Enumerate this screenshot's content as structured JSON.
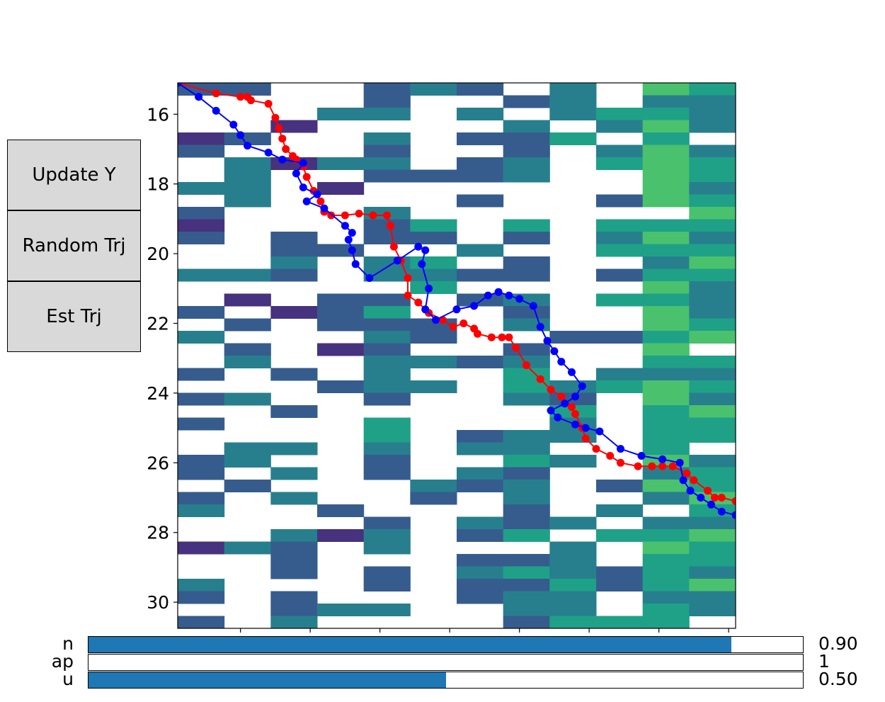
{
  "buttons": {
    "update_y": "Update Y",
    "random_trj": "Random Trj",
    "est_trj": "Est Trj"
  },
  "sliders": [
    {
      "label": "n",
      "value_text": "0.90",
      "fraction": 0.9
    },
    {
      "label": "ap",
      "value_text": "1",
      "fraction": 0.0
    },
    {
      "label": "u",
      "value_text": "0.50",
      "fraction": 0.5
    }
  ],
  "colors": {
    "red_series": "#ff0000",
    "blue_series": "#0000ff",
    "slider_fill": "#1f77b4"
  },
  "chart_data": {
    "type": "heatmap",
    "title": "",
    "xlabel": "",
    "ylabel": "",
    "colormap": "viridis",
    "xlim": [
      -0.5,
      7.5
    ],
    "ylim": [
      30.75,
      15.1
    ],
    "yticks": [
      16,
      18,
      20,
      22,
      24,
      26,
      28,
      30
    ],
    "xticks_unlabeled": [
      0.4,
      1.4,
      2.4,
      3.4,
      4.4,
      5.4,
      6.4,
      7.4
    ],
    "columns": 12,
    "rows": 44,
    "cell_height": 0.35,
    "grid": false,
    "series": [
      {
        "color": "red",
        "marker": "o",
        "points": [
          [
            -0.5,
            15.1
          ],
          [
            0.05,
            15.4
          ],
          [
            0.4,
            15.5
          ],
          [
            0.5,
            15.5
          ],
          [
            0.55,
            15.6
          ],
          [
            0.8,
            15.7
          ],
          [
            0.9,
            16.1
          ],
          [
            0.95,
            16.4
          ],
          [
            1.0,
            16.7
          ],
          [
            1.05,
            17.0
          ],
          [
            1.15,
            17.2
          ],
          [
            1.2,
            17.3
          ],
          [
            1.3,
            17.5
          ],
          [
            1.35,
            17.8
          ],
          [
            1.45,
            18.2
          ],
          [
            1.55,
            18.5
          ],
          [
            1.6,
            18.8
          ],
          [
            1.7,
            18.9
          ],
          [
            1.9,
            18.9
          ],
          [
            2.1,
            18.85
          ],
          [
            2.3,
            18.9
          ],
          [
            2.5,
            18.9
          ],
          [
            2.55,
            19.2
          ],
          [
            2.6,
            19.8
          ],
          [
            2.7,
            20.2
          ],
          [
            2.8,
            20.7
          ],
          [
            2.8,
            21.2
          ],
          [
            2.95,
            21.4
          ],
          [
            3.1,
            21.7
          ],
          [
            3.3,
            21.9
          ],
          [
            3.45,
            22.1
          ],
          [
            3.6,
            22.0
          ],
          [
            3.75,
            22.15
          ],
          [
            3.8,
            22.3
          ],
          [
            4.0,
            22.4
          ],
          [
            4.15,
            22.4
          ],
          [
            4.25,
            22.4
          ],
          [
            4.35,
            22.7
          ],
          [
            4.5,
            23.2
          ],
          [
            4.7,
            23.6
          ],
          [
            4.85,
            23.9
          ],
          [
            5.0,
            24.1
          ],
          [
            5.15,
            24.4
          ],
          [
            5.2,
            24.6
          ],
          [
            5.3,
            25.0
          ],
          [
            5.35,
            25.3
          ],
          [
            5.5,
            25.6
          ],
          [
            5.7,
            25.8
          ],
          [
            5.85,
            26.0
          ],
          [
            6.1,
            26.1
          ],
          [
            6.3,
            26.1
          ],
          [
            6.45,
            26.1
          ],
          [
            6.6,
            26.1
          ],
          [
            6.8,
            26.3
          ],
          [
            6.9,
            26.5
          ],
          [
            7.1,
            26.8
          ],
          [
            7.2,
            27.0
          ],
          [
            7.3,
            27.0
          ],
          [
            7.5,
            27.1
          ]
        ]
      },
      {
        "color": "blue",
        "marker": "o",
        "points": [
          [
            -0.5,
            15.1
          ],
          [
            -0.2,
            15.5
          ],
          [
            0.05,
            15.9
          ],
          [
            0.3,
            16.3
          ],
          [
            0.4,
            16.6
          ],
          [
            0.5,
            16.9
          ],
          [
            0.8,
            17.1
          ],
          [
            1.0,
            17.3
          ],
          [
            1.3,
            17.4
          ],
          [
            1.2,
            17.7
          ],
          [
            1.3,
            18.1
          ],
          [
            1.5,
            18.3
          ],
          [
            1.35,
            18.5
          ],
          [
            1.6,
            18.7
          ],
          [
            1.9,
            19.2
          ],
          [
            2.0,
            19.4
          ],
          [
            1.95,
            19.6
          ],
          [
            2.0,
            19.9
          ],
          [
            2.05,
            20.3
          ],
          [
            2.25,
            20.7
          ],
          [
            2.65,
            20.2
          ],
          [
            2.95,
            19.8
          ],
          [
            3.05,
            19.9
          ],
          [
            3.0,
            20.3
          ],
          [
            3.1,
            21.0
          ],
          [
            3.05,
            21.6
          ],
          [
            3.2,
            21.9
          ],
          [
            3.5,
            21.6
          ],
          [
            3.75,
            21.5
          ],
          [
            3.95,
            21.2
          ],
          [
            4.1,
            21.1
          ],
          [
            4.25,
            21.2
          ],
          [
            4.4,
            21.3
          ],
          [
            4.6,
            21.5
          ],
          [
            4.7,
            22.1
          ],
          [
            4.8,
            22.5
          ],
          [
            4.9,
            22.8
          ],
          [
            5.0,
            23.1
          ],
          [
            5.15,
            23.4
          ],
          [
            5.3,
            23.8
          ],
          [
            5.2,
            24.1
          ],
          [
            5.05,
            24.3
          ],
          [
            4.85,
            24.5
          ],
          [
            4.95,
            24.7
          ],
          [
            5.2,
            24.9
          ],
          [
            5.35,
            25.0
          ],
          [
            5.55,
            25.1
          ],
          [
            5.85,
            25.6
          ],
          [
            6.15,
            25.8
          ],
          [
            6.45,
            25.9
          ],
          [
            6.7,
            26.0
          ],
          [
            6.75,
            26.5
          ],
          [
            6.85,
            26.8
          ],
          [
            7.0,
            27.0
          ],
          [
            7.15,
            27.2
          ],
          [
            7.3,
            27.4
          ],
          [
            7.5,
            27.5
          ],
          [
            7.6,
            27.6
          ],
          [
            7.75,
            27.8
          ],
          [
            7.9,
            27.5
          ],
          [
            8.0,
            27.6
          ]
        ]
      }
    ]
  }
}
